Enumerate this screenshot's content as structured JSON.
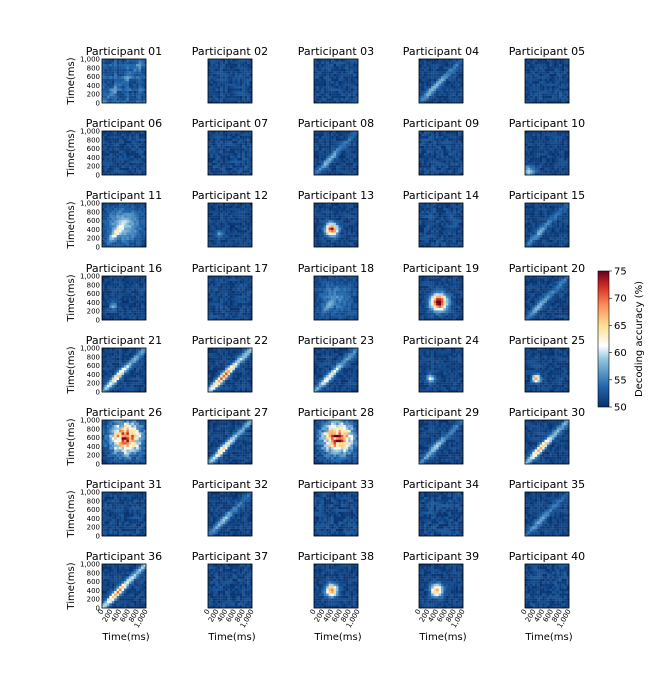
{
  "chart_data": {
    "type": "heatmap",
    "title": "",
    "panels": [
      {
        "label": "Participant 01",
        "peak": 57,
        "pattern": "grid"
      },
      {
        "label": "Participant 02",
        "peak": 54,
        "pattern": "sparse"
      },
      {
        "label": "Participant 03",
        "peak": 54,
        "pattern": "sparse"
      },
      {
        "label": "Participant 04",
        "peak": 58,
        "pattern": "diag"
      },
      {
        "label": "Participant 05",
        "peak": 53,
        "pattern": "sparse"
      },
      {
        "label": "Participant 06",
        "peak": 53,
        "pattern": "sparse"
      },
      {
        "label": "Participant 07",
        "peak": 55,
        "pattern": "sparse"
      },
      {
        "label": "Participant 08",
        "peak": 57,
        "pattern": "diag"
      },
      {
        "label": "Participant 09",
        "peak": 55,
        "pattern": "sparse"
      },
      {
        "label": "Participant 10",
        "peak": 58,
        "pattern": "corner"
      },
      {
        "label": "Participant 11",
        "peak": 66,
        "pattern": "warm"
      },
      {
        "label": "Participant 12",
        "peak": 55,
        "pattern": "spot"
      },
      {
        "label": "Participant 13",
        "peak": 72,
        "pattern": "center"
      },
      {
        "label": "Participant 14",
        "peak": 55,
        "pattern": "sparse"
      },
      {
        "label": "Participant 15",
        "peak": 56,
        "pattern": "diag"
      },
      {
        "label": "Participant 16",
        "peak": 56,
        "pattern": "spot"
      },
      {
        "label": "Participant 17",
        "peak": 54,
        "pattern": "sparse"
      },
      {
        "label": "Participant 18",
        "peak": 58,
        "pattern": "warm"
      },
      {
        "label": "Participant 19",
        "peak": 75,
        "pattern": "blob"
      },
      {
        "label": "Participant 20",
        "peak": 57,
        "pattern": "diag"
      },
      {
        "label": "Participant 21",
        "peak": 64,
        "pattern": "diag"
      },
      {
        "label": "Participant 22",
        "peak": 70,
        "pattern": "diag"
      },
      {
        "label": "Participant 23",
        "peak": 62,
        "pattern": "diag"
      },
      {
        "label": "Participant 24",
        "peak": 60,
        "pattern": "spot"
      },
      {
        "label": "Participant 25",
        "peak": 68,
        "pattern": "spot"
      },
      {
        "label": "Participant 26",
        "peak": 75,
        "pattern": "big"
      },
      {
        "label": "Participant 27",
        "peak": 64,
        "pattern": "diag"
      },
      {
        "label": "Participant 28",
        "peak": 75,
        "pattern": "big"
      },
      {
        "label": "Participant 29",
        "peak": 58,
        "pattern": "diag"
      },
      {
        "label": "Participant 30",
        "peak": 66,
        "pattern": "diag"
      },
      {
        "label": "Participant 31",
        "peak": 54,
        "pattern": "sparse"
      },
      {
        "label": "Participant 32",
        "peak": 58,
        "pattern": "diag"
      },
      {
        "label": "Participant 33",
        "peak": 55,
        "pattern": "sparse"
      },
      {
        "label": "Participant 34",
        "peak": 55,
        "pattern": "sparse"
      },
      {
        "label": "Participant 35",
        "peak": 56,
        "pattern": "diag"
      },
      {
        "label": "Participant 36",
        "peak": 68,
        "pattern": "diag"
      },
      {
        "label": "Participant 37",
        "peak": 54,
        "pattern": "sparse"
      },
      {
        "label": "Participant 38",
        "peak": 68,
        "pattern": "center"
      },
      {
        "label": "Participant 39",
        "peak": 66,
        "pattern": "center"
      },
      {
        "label": "Participant 40",
        "peak": 54,
        "pattern": "sparse"
      }
    ],
    "xlabel": "Time(ms)",
    "ylabel": "Time(ms)",
    "xticks": [
      "0",
      "200",
      "400",
      "600",
      "800",
      "1,000"
    ],
    "yticks": [
      "1,000",
      "800",
      "600",
      "400",
      "200",
      "0"
    ],
    "colorbar": {
      "label": "Decoding accuracy (%)",
      "range": [
        50,
        75
      ],
      "ticks": [
        "75",
        "70",
        "65",
        "60",
        "55",
        "50"
      ],
      "colormap": [
        "#08306b",
        "#2166ac",
        "#67a9cf",
        "#ffffff",
        "#fee090",
        "#fc8d59",
        "#d73027",
        "#67001f"
      ]
    }
  }
}
